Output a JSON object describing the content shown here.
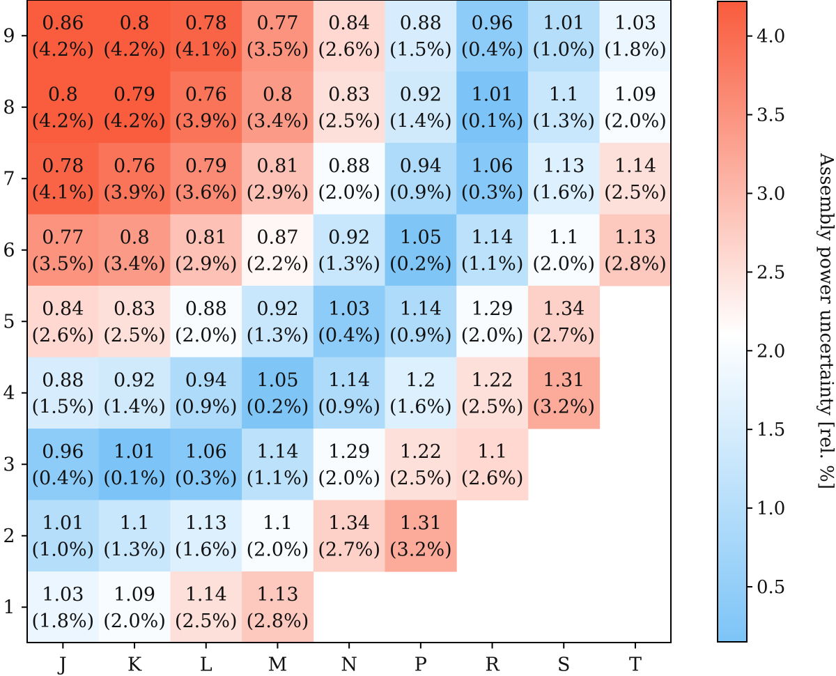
{
  "chart_data": {
    "type": "heatmap",
    "xlabel": "",
    "ylabel": "",
    "x_categories": [
      "J",
      "K",
      "L",
      "M",
      "N",
      "P",
      "R",
      "S",
      "T"
    ],
    "y_categories": [
      "1",
      "2",
      "3",
      "4",
      "5",
      "6",
      "7",
      "8",
      "9"
    ],
    "colorbar": {
      "label": "Assembly power uncertainty [rel. %]",
      "range": [
        0.15,
        4.22
      ],
      "ticks": [
        "0.5",
        "1.0",
        "1.5",
        "2.0",
        "2.5",
        "3.0",
        "3.5",
        "4.0"
      ],
      "colormap": [
        "#7cc4f7",
        "#ffffff",
        "#f95b3c"
      ],
      "center": 2.1
    },
    "cells": [
      {
        "row": "9",
        "col": "J",
        "value": "0.86",
        "uncertainty": "(4.2%)",
        "u": 4.2
      },
      {
        "row": "9",
        "col": "K",
        "value": "0.8",
        "uncertainty": "(4.2%)",
        "u": 4.2
      },
      {
        "row": "9",
        "col": "L",
        "value": "0.78",
        "uncertainty": "(4.1%)",
        "u": 4.1
      },
      {
        "row": "9",
        "col": "M",
        "value": "0.77",
        "uncertainty": "(3.5%)",
        "u": 3.5
      },
      {
        "row": "9",
        "col": "N",
        "value": "0.84",
        "uncertainty": "(2.6%)",
        "u": 2.6
      },
      {
        "row": "9",
        "col": "P",
        "value": "0.88",
        "uncertainty": "(1.5%)",
        "u": 1.5
      },
      {
        "row": "9",
        "col": "R",
        "value": "0.96",
        "uncertainty": "(0.4%)",
        "u": 0.4
      },
      {
        "row": "9",
        "col": "S",
        "value": "1.01",
        "uncertainty": "(1.0%)",
        "u": 1.0
      },
      {
        "row": "9",
        "col": "T",
        "value": "1.03",
        "uncertainty": "(1.8%)",
        "u": 1.8
      },
      {
        "row": "8",
        "col": "J",
        "value": "0.8",
        "uncertainty": "(4.2%)",
        "u": 4.2
      },
      {
        "row": "8",
        "col": "K",
        "value": "0.79",
        "uncertainty": "(4.2%)",
        "u": 4.2
      },
      {
        "row": "8",
        "col": "L",
        "value": "0.76",
        "uncertainty": "(3.9%)",
        "u": 3.9
      },
      {
        "row": "8",
        "col": "M",
        "value": "0.8",
        "uncertainty": "(3.4%)",
        "u": 3.4
      },
      {
        "row": "8",
        "col": "N",
        "value": "0.83",
        "uncertainty": "(2.5%)",
        "u": 2.5
      },
      {
        "row": "8",
        "col": "P",
        "value": "0.92",
        "uncertainty": "(1.4%)",
        "u": 1.4
      },
      {
        "row": "8",
        "col": "R",
        "value": "1.01",
        "uncertainty": "(0.1%)",
        "u": 0.1
      },
      {
        "row": "8",
        "col": "S",
        "value": "1.1",
        "uncertainty": "(1.3%)",
        "u": 1.3
      },
      {
        "row": "8",
        "col": "T",
        "value": "1.09",
        "uncertainty": "(2.0%)",
        "u": 2.0
      },
      {
        "row": "7",
        "col": "J",
        "value": "0.78",
        "uncertainty": "(4.1%)",
        "u": 4.1
      },
      {
        "row": "7",
        "col": "K",
        "value": "0.76",
        "uncertainty": "(3.9%)",
        "u": 3.9
      },
      {
        "row": "7",
        "col": "L",
        "value": "0.79",
        "uncertainty": "(3.6%)",
        "u": 3.6
      },
      {
        "row": "7",
        "col": "M",
        "value": "0.81",
        "uncertainty": "(2.9%)",
        "u": 2.9
      },
      {
        "row": "7",
        "col": "N",
        "value": "0.88",
        "uncertainty": "(2.0%)",
        "u": 2.0
      },
      {
        "row": "7",
        "col": "P",
        "value": "0.94",
        "uncertainty": "(0.9%)",
        "u": 0.9
      },
      {
        "row": "7",
        "col": "R",
        "value": "1.06",
        "uncertainty": "(0.3%)",
        "u": 0.3
      },
      {
        "row": "7",
        "col": "S",
        "value": "1.13",
        "uncertainty": "(1.6%)",
        "u": 1.6
      },
      {
        "row": "7",
        "col": "T",
        "value": "1.14",
        "uncertainty": "(2.5%)",
        "u": 2.5
      },
      {
        "row": "6",
        "col": "J",
        "value": "0.77",
        "uncertainty": "(3.5%)",
        "u": 3.5
      },
      {
        "row": "6",
        "col": "K",
        "value": "0.8",
        "uncertainty": "(3.4%)",
        "u": 3.4
      },
      {
        "row": "6",
        "col": "L",
        "value": "0.81",
        "uncertainty": "(2.9%)",
        "u": 2.9
      },
      {
        "row": "6",
        "col": "M",
        "value": "0.87",
        "uncertainty": "(2.2%)",
        "u": 2.2
      },
      {
        "row": "6",
        "col": "N",
        "value": "0.92",
        "uncertainty": "(1.3%)",
        "u": 1.3
      },
      {
        "row": "6",
        "col": "P",
        "value": "1.05",
        "uncertainty": "(0.2%)",
        "u": 0.2
      },
      {
        "row": "6",
        "col": "R",
        "value": "1.14",
        "uncertainty": "(1.1%)",
        "u": 1.1
      },
      {
        "row": "6",
        "col": "S",
        "value": "1.1",
        "uncertainty": "(2.0%)",
        "u": 2.0
      },
      {
        "row": "6",
        "col": "T",
        "value": "1.13",
        "uncertainty": "(2.8%)",
        "u": 2.8
      },
      {
        "row": "5",
        "col": "J",
        "value": "0.84",
        "uncertainty": "(2.6%)",
        "u": 2.6
      },
      {
        "row": "5",
        "col": "K",
        "value": "0.83",
        "uncertainty": "(2.5%)",
        "u": 2.5
      },
      {
        "row": "5",
        "col": "L",
        "value": "0.88",
        "uncertainty": "(2.0%)",
        "u": 2.0
      },
      {
        "row": "5",
        "col": "M",
        "value": "0.92",
        "uncertainty": "(1.3%)",
        "u": 1.3
      },
      {
        "row": "5",
        "col": "N",
        "value": "1.03",
        "uncertainty": "(0.4%)",
        "u": 0.4
      },
      {
        "row": "5",
        "col": "P",
        "value": "1.14",
        "uncertainty": "(0.9%)",
        "u": 0.9
      },
      {
        "row": "5",
        "col": "R",
        "value": "1.29",
        "uncertainty": "(2.0%)",
        "u": 2.0
      },
      {
        "row": "5",
        "col": "S",
        "value": "1.34",
        "uncertainty": "(2.7%)",
        "u": 2.7
      },
      {
        "row": "4",
        "col": "J",
        "value": "0.88",
        "uncertainty": "(1.5%)",
        "u": 1.5
      },
      {
        "row": "4",
        "col": "K",
        "value": "0.92",
        "uncertainty": "(1.4%)",
        "u": 1.4
      },
      {
        "row": "4",
        "col": "L",
        "value": "0.94",
        "uncertainty": "(0.9%)",
        "u": 0.9
      },
      {
        "row": "4",
        "col": "M",
        "value": "1.05",
        "uncertainty": "(0.2%)",
        "u": 0.2
      },
      {
        "row": "4",
        "col": "N",
        "value": "1.14",
        "uncertainty": "(0.9%)",
        "u": 0.9
      },
      {
        "row": "4",
        "col": "P",
        "value": "1.2",
        "uncertainty": "(1.6%)",
        "u": 1.6
      },
      {
        "row": "4",
        "col": "R",
        "value": "1.22",
        "uncertainty": "(2.5%)",
        "u": 2.5
      },
      {
        "row": "4",
        "col": "S",
        "value": "1.31",
        "uncertainty": "(3.2%)",
        "u": 3.2
      },
      {
        "row": "3",
        "col": "J",
        "value": "0.96",
        "uncertainty": "(0.4%)",
        "u": 0.4
      },
      {
        "row": "3",
        "col": "K",
        "value": "1.01",
        "uncertainty": "(0.1%)",
        "u": 0.1
      },
      {
        "row": "3",
        "col": "L",
        "value": "1.06",
        "uncertainty": "(0.3%)",
        "u": 0.3
      },
      {
        "row": "3",
        "col": "M",
        "value": "1.14",
        "uncertainty": "(1.1%)",
        "u": 1.1
      },
      {
        "row": "3",
        "col": "N",
        "value": "1.29",
        "uncertainty": "(2.0%)",
        "u": 2.0
      },
      {
        "row": "3",
        "col": "P",
        "value": "1.22",
        "uncertainty": "(2.5%)",
        "u": 2.5
      },
      {
        "row": "3",
        "col": "R",
        "value": "1.1",
        "uncertainty": "(2.6%)",
        "u": 2.6
      },
      {
        "row": "2",
        "col": "J",
        "value": "1.01",
        "uncertainty": "(1.0%)",
        "u": 1.0
      },
      {
        "row": "2",
        "col": "K",
        "value": "1.1",
        "uncertainty": "(1.3%)",
        "u": 1.3
      },
      {
        "row": "2",
        "col": "L",
        "value": "1.13",
        "uncertainty": "(1.6%)",
        "u": 1.6
      },
      {
        "row": "2",
        "col": "M",
        "value": "1.1",
        "uncertainty": "(2.0%)",
        "u": 2.0
      },
      {
        "row": "2",
        "col": "N",
        "value": "1.34",
        "uncertainty": "(2.7%)",
        "u": 2.7
      },
      {
        "row": "2",
        "col": "P",
        "value": "1.31",
        "uncertainty": "(3.2%)",
        "u": 3.2
      },
      {
        "row": "1",
        "col": "J",
        "value": "1.03",
        "uncertainty": "(1.8%)",
        "u": 1.8
      },
      {
        "row": "1",
        "col": "K",
        "value": "1.09",
        "uncertainty": "(2.0%)",
        "u": 2.0
      },
      {
        "row": "1",
        "col": "L",
        "value": "1.14",
        "uncertainty": "(2.5%)",
        "u": 2.5
      },
      {
        "row": "1",
        "col": "M",
        "value": "1.13",
        "uncertainty": "(2.8%)",
        "u": 2.8
      }
    ]
  }
}
